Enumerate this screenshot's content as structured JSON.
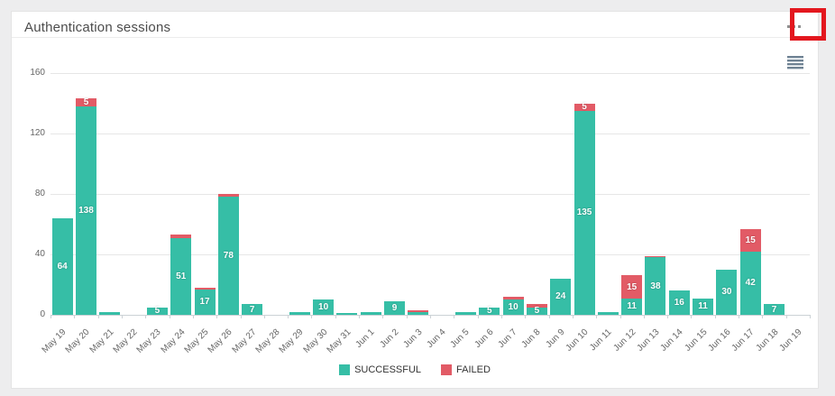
{
  "card": {
    "title": "Authentication sessions"
  },
  "header_menu": {
    "ellipsis_icon": "more-options",
    "annotation_color": "#e3171e"
  },
  "export_menu": {
    "icon": "hamburger-menu",
    "color": "#6f8293"
  },
  "chart_data": {
    "type": "bar",
    "stacked": true,
    "title": "Authentication sessions",
    "xlabel": "",
    "ylabel": "",
    "ylim": [
      0,
      160
    ],
    "yticks": [
      0,
      40,
      80,
      120,
      160
    ],
    "grid": true,
    "legend_position": "bottom",
    "data_label_min_value": 5,
    "categories": [
      "May 19",
      "May 20",
      "May 21",
      "May 22",
      "May 23",
      "May 24",
      "May 25",
      "May 26",
      "May 27",
      "May 28",
      "May 29",
      "May 30",
      "May 31",
      "Jun 1",
      "Jun 2",
      "Jun 3",
      "Jun 4",
      "Jun 5",
      "Jun 6",
      "Jun 7",
      "Jun 8",
      "Jun 9",
      "Jun 10",
      "Jun 11",
      "Jun 12",
      "Jun 13",
      "Jun 14",
      "Jun 15",
      "Jun 16",
      "Jun 17",
      "Jun 18",
      "Jun 19"
    ],
    "series": [
      {
        "name": "SUCCESSFUL",
        "color": "#36bea6",
        "values": [
          64,
          138,
          2,
          0,
          5,
          51,
          17,
          78,
          7,
          0,
          2,
          10,
          1,
          2,
          9,
          2,
          0,
          2,
          5,
          10,
          5,
          24,
          135,
          2,
          11,
          38,
          16,
          11,
          30,
          42,
          7,
          0
        ]
      },
      {
        "name": "FAILED",
        "color": "#e25b66",
        "values": [
          0,
          5,
          0,
          0,
          0,
          2,
          1,
          2,
          0,
          0,
          0,
          0,
          0,
          0,
          0,
          1,
          0,
          0,
          0,
          2,
          2,
          0,
          5,
          0,
          15,
          1,
          0,
          0,
          0,
          15,
          0,
          0
        ]
      }
    ]
  }
}
